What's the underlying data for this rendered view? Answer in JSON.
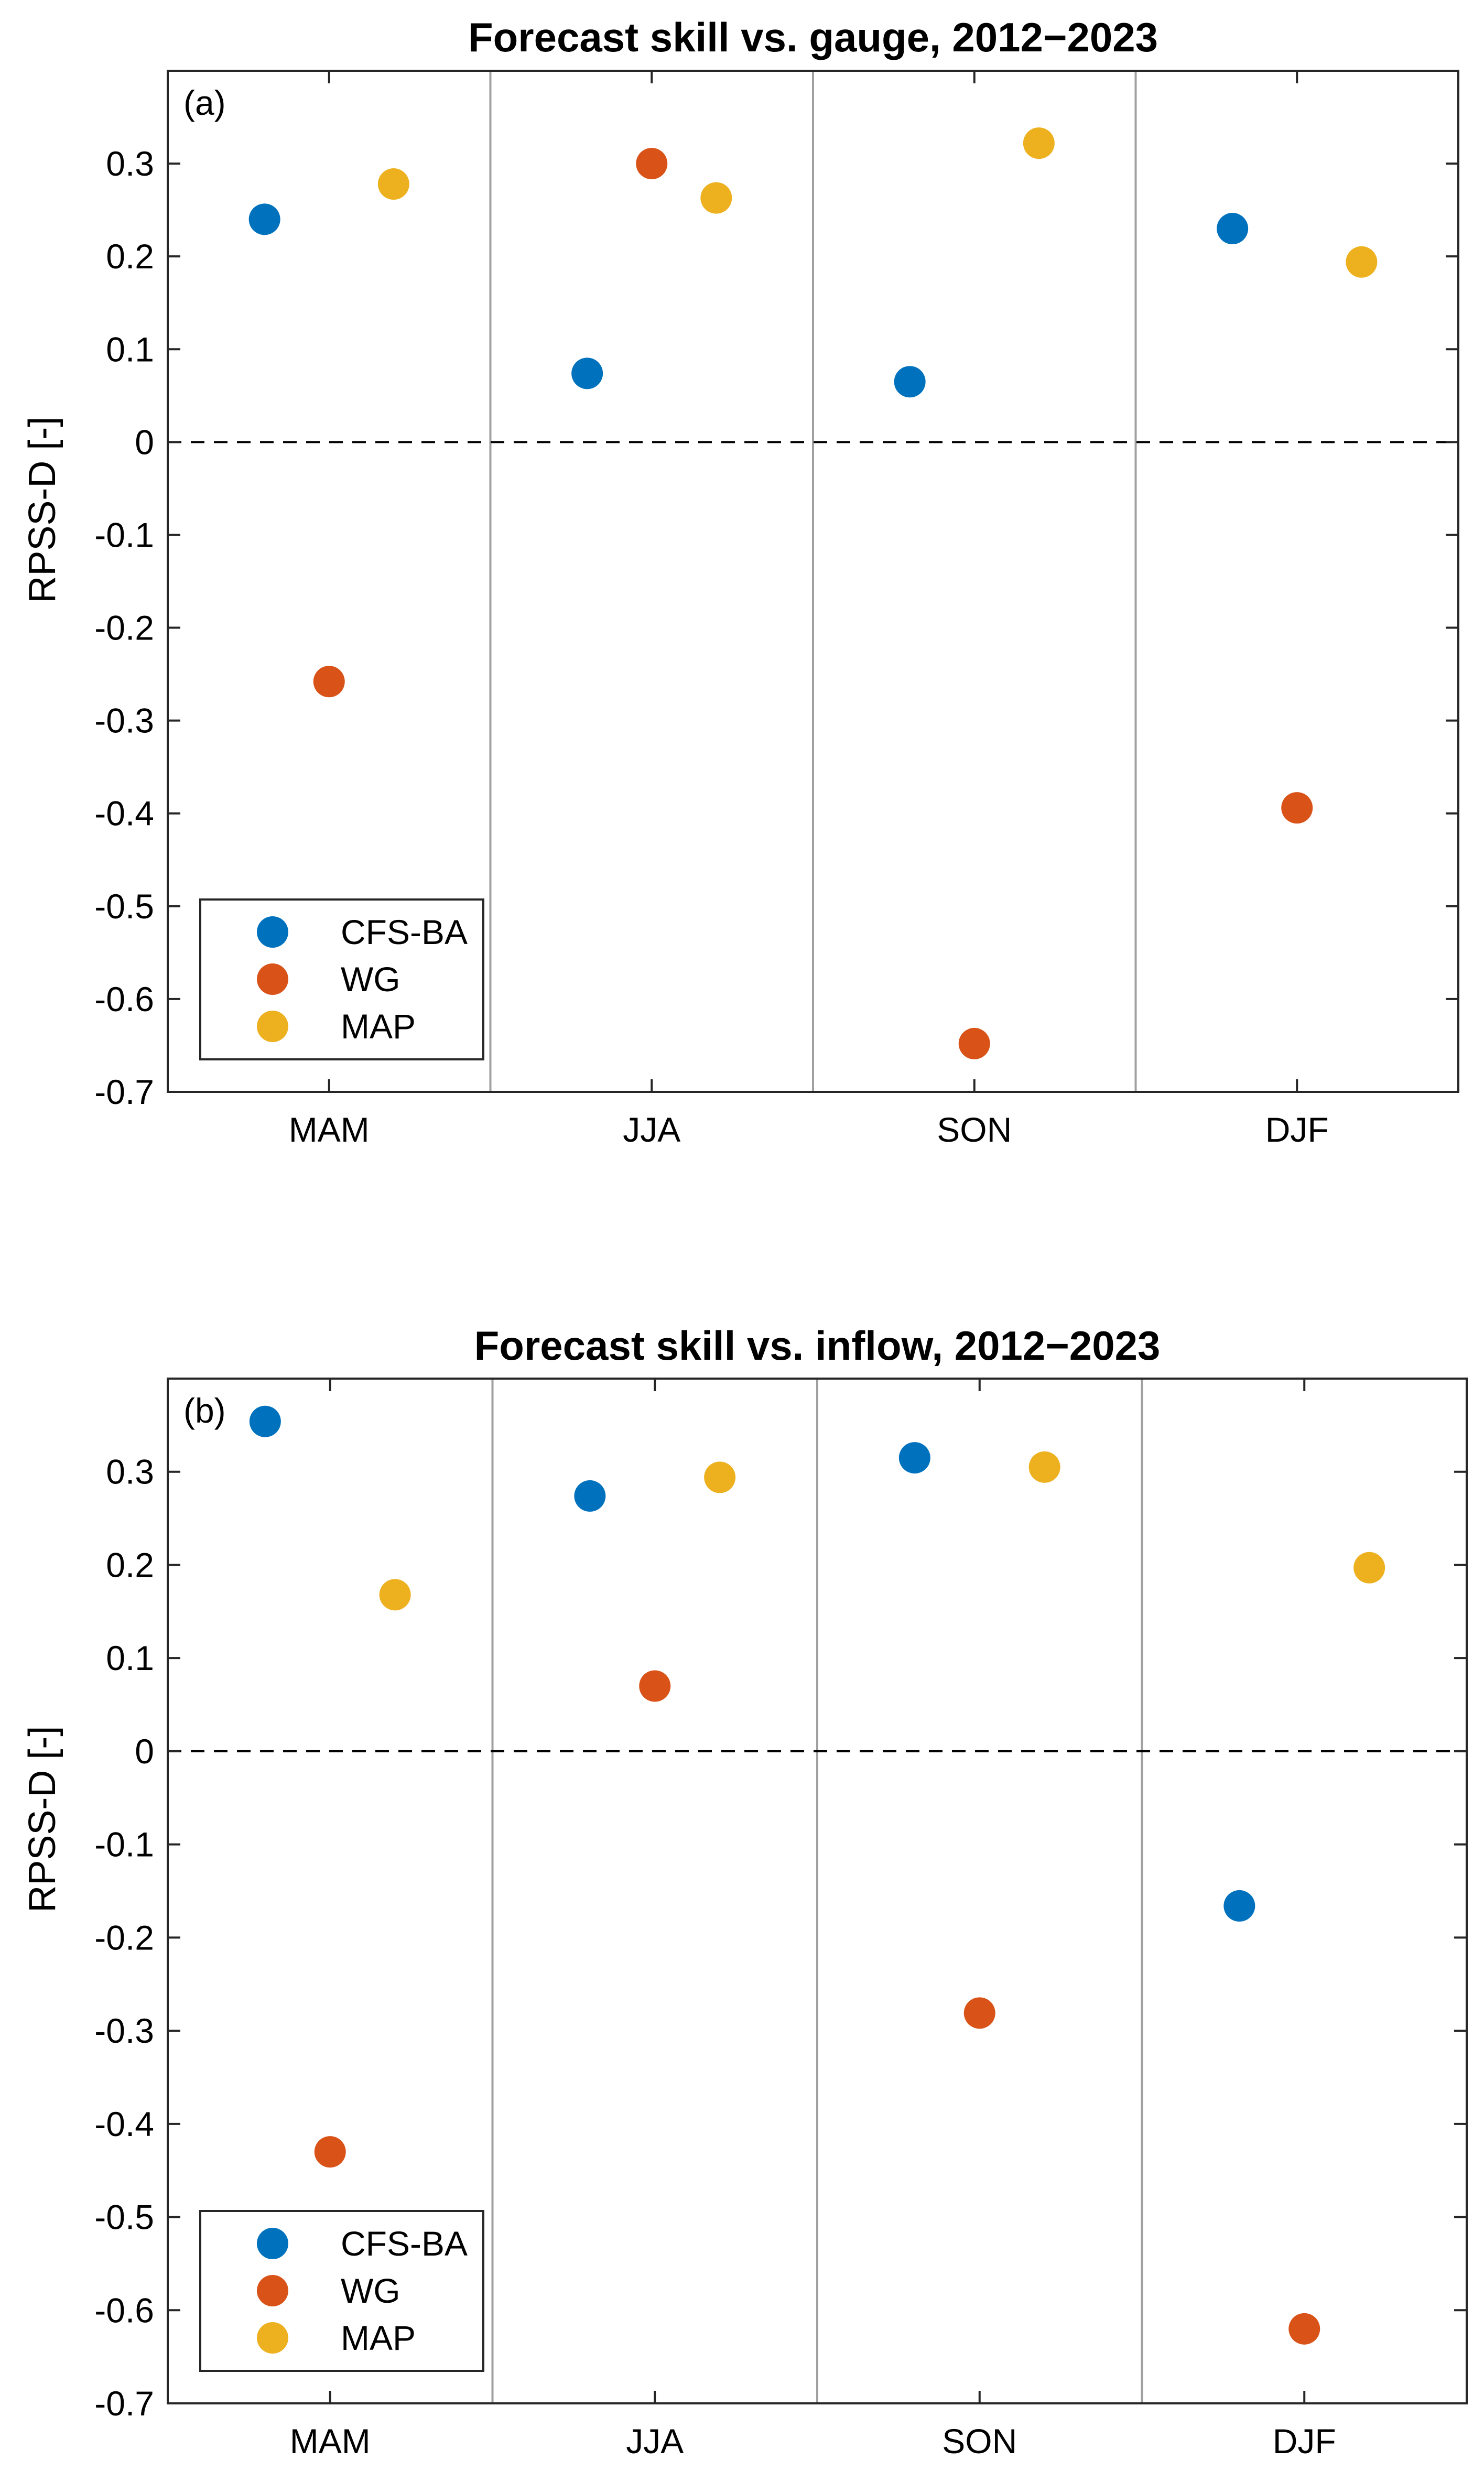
{
  "chart_data": [
    {
      "type": "scatter",
      "panel_label": "(a)",
      "title": "Forecast skill vs. gauge, 2012−2023",
      "ylabel": "RPSS-D [-]",
      "xlabel": "",
      "categories": [
        "MAM",
        "JJA",
        "SON",
        "DJF"
      ],
      "ylim": [
        -0.7,
        0.4
      ],
      "yticks": [
        0.3,
        0.2,
        0.1,
        0,
        -0.1,
        -0.2,
        -0.3,
        -0.4,
        -0.5,
        -0.6,
        -0.7
      ],
      "ytick_labels": [
        "0.3",
        "0.2",
        "0.1",
        "0",
        "-0.1",
        "-0.2",
        "-0.3",
        "-0.4",
        "-0.5",
        "-0.6",
        "-0.7"
      ],
      "reference_line": 0,
      "grid": false,
      "legend_position": "bottom-left",
      "series": [
        {
          "name": "CFS-BA",
          "color": "#0072BD",
          "values": [
            0.24,
            0.074,
            0.065,
            0.23
          ]
        },
        {
          "name": "WG",
          "color": "#D95319",
          "values": [
            -0.258,
            0.3,
            -0.648,
            -0.394
          ]
        },
        {
          "name": "MAP",
          "color": "#EDB120",
          "values": [
            0.278,
            0.263,
            0.322,
            0.194
          ]
        }
      ]
    },
    {
      "type": "scatter",
      "panel_label": "(b)",
      "title": "Forecast skill vs. inflow, 2012−2023",
      "ylabel": "RPSS-D [-]",
      "xlabel": "",
      "categories": [
        "MAM",
        "JJA",
        "SON",
        "DJF"
      ],
      "ylim": [
        -0.7,
        0.4
      ],
      "yticks": [
        0.3,
        0.2,
        0.1,
        0,
        -0.1,
        -0.2,
        -0.3,
        -0.4,
        -0.5,
        -0.6,
        -0.7
      ],
      "ytick_labels": [
        "0.3",
        "0.2",
        "0.1",
        "0",
        "-0.1",
        "-0.2",
        "-0.3",
        "-0.4",
        "-0.5",
        "-0.6",
        "-0.7"
      ],
      "reference_line": 0,
      "grid": false,
      "legend_position": "bottom-left",
      "series": [
        {
          "name": "CFS-BA",
          "color": "#0072BD",
          "values": [
            0.354,
            0.274,
            0.315,
            -0.166
          ]
        },
        {
          "name": "WG",
          "color": "#D95319",
          "values": [
            -0.43,
            0.07,
            -0.281,
            -0.62
          ]
        },
        {
          "name": "MAP",
          "color": "#EDB120",
          "values": [
            0.168,
            0.294,
            0.305,
            0.197
          ]
        }
      ]
    }
  ]
}
